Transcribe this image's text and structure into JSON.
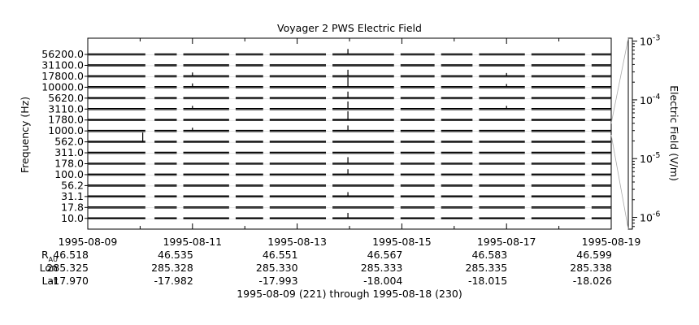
{
  "chart_data": {
    "type": "line",
    "title": "Voyager 2 PWS Electric Field",
    "ylabel": "Frequency (Hz)",
    "colorbar_label": "Electric Field (V/m)",
    "x_ticks": [
      "1995-08-09",
      "1995-08-11",
      "1995-08-13",
      "1995-08-15",
      "1995-08-17",
      "1995-08-19"
    ],
    "x_range": [
      "1995-08-09",
      "1995-08-19"
    ],
    "channels": [
      "56200.0",
      "31100.0",
      "17800.0",
      "10000.0",
      "5620.0",
      "3110.0",
      "1780.0",
      "1000.0",
      "562.0",
      "311.0",
      "178.0",
      "100.0",
      "56.2",
      "31.1",
      "17.8",
      "10.0"
    ],
    "colorbar_ticks": [
      {
        "base": "10",
        "exp": "-3",
        "value": 0.001
      },
      {
        "base": "10",
        "exp": "-4",
        "value": 0.0001
      },
      {
        "base": "10",
        "exp": "-5",
        "value": 1e-05
      },
      {
        "base": "10",
        "exp": "-6",
        "value": 1e-06
      }
    ],
    "colorbar_scale": "log",
    "data_gaps_days": [
      [
        1.08,
        1.25
      ],
      [
        1.7,
        1.82
      ],
      [
        2.7,
        2.82
      ],
      [
        3.35,
        3.45
      ],
      [
        4.55,
        4.67
      ],
      [
        5.85,
        5.97
      ],
      [
        6.62,
        6.74
      ],
      [
        7.35,
        7.47
      ],
      [
        8.35,
        8.47
      ],
      [
        9.5,
        9.62
      ]
    ],
    "bursts": [
      {
        "day": 1.05,
        "channel": "562.0",
        "level": 0.85
      },
      {
        "day": 2.0,
        "channel": "17800.0",
        "level": 0.35
      },
      {
        "day": 2.0,
        "channel": "10000.0",
        "level": 0.35
      },
      {
        "day": 2.0,
        "channel": "3110.0",
        "level": 0.3
      },
      {
        "day": 2.0,
        "channel": "1000.0",
        "level": 0.3
      },
      {
        "day": 4.97,
        "channel": "56200.0",
        "level": 0.5
      },
      {
        "day": 4.97,
        "channel": "17800.0",
        "level": 0.6
      },
      {
        "day": 4.97,
        "channel": "10000.0",
        "level": 0.9
      },
      {
        "day": 4.97,
        "channel": "5620.0",
        "level": 0.6
      },
      {
        "day": 4.97,
        "channel": "3110.0",
        "level": 0.7
      },
      {
        "day": 4.97,
        "channel": "1780.0",
        "level": 0.8
      },
      {
        "day": 4.97,
        "channel": "1000.0",
        "level": 0.5
      },
      {
        "day": 4.97,
        "channel": "178.0",
        "level": 0.6
      },
      {
        "day": 4.97,
        "channel": "100.0",
        "level": 0.5
      },
      {
        "day": 4.97,
        "channel": "31.1",
        "level": 0.4
      },
      {
        "day": 4.97,
        "channel": "10.0",
        "level": 0.5
      },
      {
        "day": 8.0,
        "channel": "17800.0",
        "level": 0.3
      },
      {
        "day": 8.0,
        "channel": "10000.0",
        "level": 0.3
      },
      {
        "day": 8.0,
        "channel": "3110.0",
        "level": 0.3
      }
    ]
  },
  "ephemeris": {
    "rows": [
      {
        "label": "R",
        "sub": "AU",
        "values": [
          "46.518",
          "46.535",
          "46.551",
          "46.567",
          "46.583",
          "46.599"
        ]
      },
      {
        "label": "Lon",
        "sub": "",
        "values": [
          "285.325",
          "285.328",
          "285.330",
          "285.333",
          "285.335",
          "285.338"
        ]
      },
      {
        "label": "Lat",
        "sub": "",
        "values": [
          "-17.970",
          "-17.982",
          "-17.993",
          "-18.004",
          "-18.015",
          "-18.026"
        ]
      }
    ]
  },
  "footer": "1995-08-09 (221) through 1995-08-18 (230)"
}
